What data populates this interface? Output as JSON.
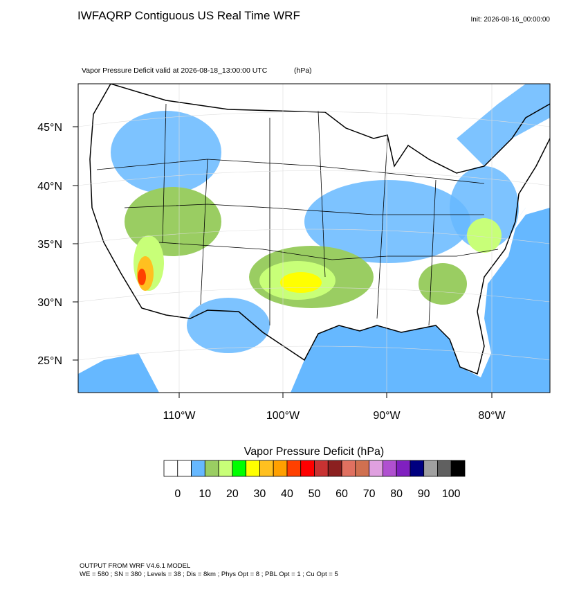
{
  "header": {
    "title": "IWFAQRP Contiguous US Real Time WRF",
    "init": "Init: 2026-08-16_00:00:00"
  },
  "map": {
    "subtitle": "Vapor Pressure Deficit valid at 2026-08-18_13:00:00 UTC",
    "units": "(hPa)",
    "lat_labels": [
      "45°N",
      "40°N",
      "35°N",
      "30°N",
      "25°N"
    ],
    "lon_labels": [
      "110°W",
      "100°W",
      "90°W",
      "80°W"
    ]
  },
  "colorbar": {
    "title": "Vapor Pressure Deficit  (hPa)",
    "colors": [
      "#ffffff",
      "#ffffff",
      "#66b8ff",
      "#9acd62",
      "#c8ff78",
      "#00ff00",
      "#ffff00",
      "#ffc020",
      "#ffa000",
      "#ff4000",
      "#ff0000",
      "#c83232",
      "#8b2020",
      "#e07060",
      "#d07050",
      "#e0a0e0",
      "#b050d0",
      "#8020c0",
      "#000080",
      "#a0a0a0",
      "#606060",
      "#000000"
    ],
    "labels": [
      "0",
      "10",
      "20",
      "30",
      "40",
      "50",
      "60",
      "70",
      "80",
      "90",
      "100"
    ]
  },
  "footer": {
    "lines": [
      "OUTPUT FROM WRF V4.6.1 MODEL",
      "WE = 580 ; SN = 380 ; Levels = 38 ; Dis = 8km ; Phys Opt = 8 ; PBL Opt = 1 ; Cu Opt = 5"
    ]
  }
}
